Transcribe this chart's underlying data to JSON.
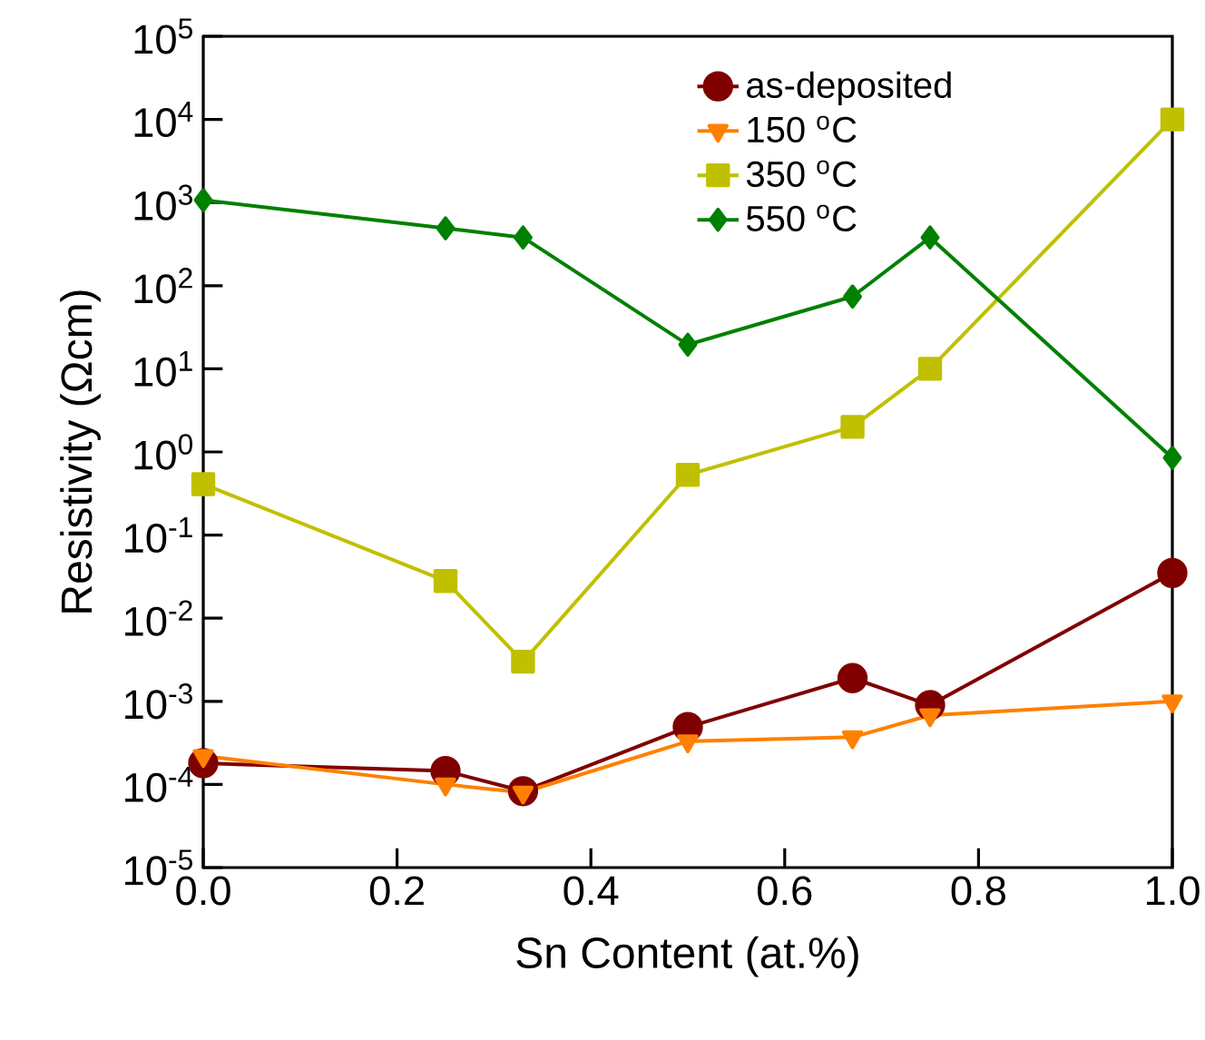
{
  "chart_data": {
    "type": "line",
    "xlabel": "Sn Content (at.%)",
    "ylabel": "Resistivity (Ωcm)",
    "log": "y",
    "legend": "top right",
    "grid": false,
    "x": [
      0,
      0.25,
      0.33,
      0.5,
      0.67,
      0.75,
      1.0
    ],
    "xlim": [
      0,
      1.0
    ],
    "xticks": [
      {
        "value": 0,
        "label": "0.0"
      },
      {
        "value": 0.2,
        "label": "0.2"
      },
      {
        "value": 0.4,
        "label": "0.4"
      },
      {
        "value": 0.6,
        "label": "0.6"
      },
      {
        "value": 0.8,
        "label": "0.8"
      },
      {
        "value": 1.0,
        "label": "1.0"
      }
    ],
    "ylim": [
      1e-05,
      100000.0
    ],
    "yticks": [
      {
        "value": 1e-05,
        "label": "10$^{-5}$"
      },
      {
        "value": 0.0001,
        "label": "10$^{-4}$"
      },
      {
        "value": 0.001,
        "label": "10$^{-3}$"
      },
      {
        "value": 0.01,
        "label": "10$^{-2}$"
      },
      {
        "value": 0.1,
        "label": "10$^{-1}$"
      },
      {
        "value": 1,
        "label": "10$^{0}$"
      },
      {
        "value": 10,
        "label": "10$^{1}$"
      },
      {
        "value": 100,
        "label": "10$^{2}$"
      },
      {
        "value": 1000,
        "label": "10$^{3}$"
      },
      {
        "value": 10000,
        "label": "10$^{4}$"
      },
      {
        "value": 100000,
        "label": "10$^{5}$"
      }
    ],
    "series": [
      {
        "name": "as-deposited",
        "color": "#800000",
        "marker": "circle",
        "values": [
          0.00018,
          0.000145,
          8.3e-05,
          0.00049,
          0.0019,
          0.0009,
          0.035
        ]
      },
      {
        "name": "150 $^{o}$C",
        "color": "#ff8000",
        "marker": "triangle",
        "values": [
          0.00022,
          0.0001,
          8e-05,
          0.00033,
          0.00037,
          0.00068,
          0.001
        ]
      },
      {
        "name": "350 $^{o}$C",
        "color": "#c0c000",
        "marker": "square",
        "values": [
          0.41,
          0.028,
          0.003,
          0.53,
          2.0,
          10,
          10000
        ]
      },
      {
        "name": "550 $^{o}$C",
        "color": "#008000",
        "marker": "diamond",
        "values": [
          1070,
          490,
          380,
          19.5,
          74,
          380,
          0.85
        ]
      }
    ]
  }
}
